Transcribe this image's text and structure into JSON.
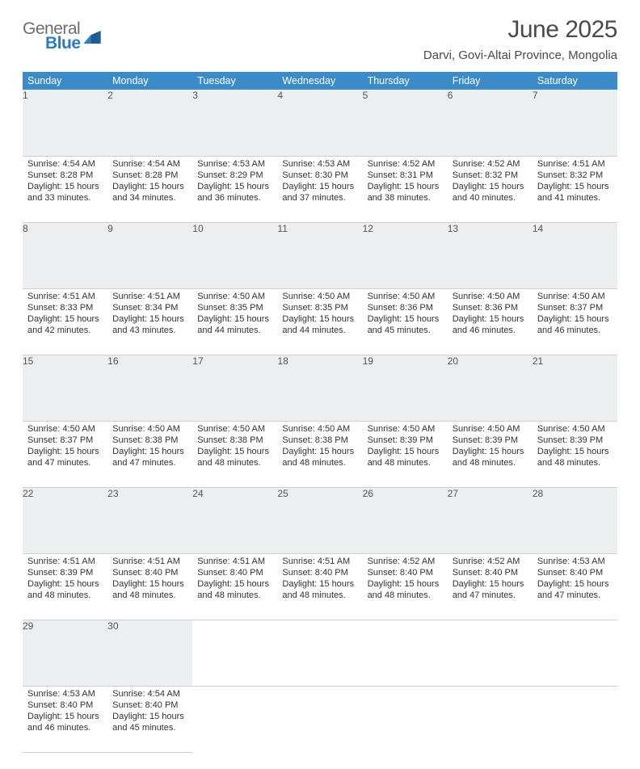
{
  "branding": {
    "word1": "General",
    "word2": "Blue",
    "word1_color": "#6e6e6e",
    "word2_color": "#2f7bbf"
  },
  "title": "June 2025",
  "location": "Darvi, Govi-Altai Province, Mongolia",
  "colors": {
    "header_bg": "#3b8bc9",
    "header_text": "#ffffff",
    "daynum_bg": "#eceeef",
    "week_sep": "#3b6fa0",
    "cell_border": "#d0d0d0",
    "body_text": "#333333"
  },
  "weekdays": [
    "Sunday",
    "Monday",
    "Tuesday",
    "Wednesday",
    "Thursday",
    "Friday",
    "Saturday"
  ],
  "weeks": [
    [
      {
        "n": "1",
        "sr": "4:54 AM",
        "ss": "8:28 PM",
        "dl": "15 hours and 33 minutes."
      },
      {
        "n": "2",
        "sr": "4:54 AM",
        "ss": "8:28 PM",
        "dl": "15 hours and 34 minutes."
      },
      {
        "n": "3",
        "sr": "4:53 AM",
        "ss": "8:29 PM",
        "dl": "15 hours and 36 minutes."
      },
      {
        "n": "4",
        "sr": "4:53 AM",
        "ss": "8:30 PM",
        "dl": "15 hours and 37 minutes."
      },
      {
        "n": "5",
        "sr": "4:52 AM",
        "ss": "8:31 PM",
        "dl": "15 hours and 38 minutes."
      },
      {
        "n": "6",
        "sr": "4:52 AM",
        "ss": "8:32 PM",
        "dl": "15 hours and 40 minutes."
      },
      {
        "n": "7",
        "sr": "4:51 AM",
        "ss": "8:32 PM",
        "dl": "15 hours and 41 minutes."
      }
    ],
    [
      {
        "n": "8",
        "sr": "4:51 AM",
        "ss": "8:33 PM",
        "dl": "15 hours and 42 minutes."
      },
      {
        "n": "9",
        "sr": "4:51 AM",
        "ss": "8:34 PM",
        "dl": "15 hours and 43 minutes."
      },
      {
        "n": "10",
        "sr": "4:50 AM",
        "ss": "8:35 PM",
        "dl": "15 hours and 44 minutes."
      },
      {
        "n": "11",
        "sr": "4:50 AM",
        "ss": "8:35 PM",
        "dl": "15 hours and 44 minutes."
      },
      {
        "n": "12",
        "sr": "4:50 AM",
        "ss": "8:36 PM",
        "dl": "15 hours and 45 minutes."
      },
      {
        "n": "13",
        "sr": "4:50 AM",
        "ss": "8:36 PM",
        "dl": "15 hours and 46 minutes."
      },
      {
        "n": "14",
        "sr": "4:50 AM",
        "ss": "8:37 PM",
        "dl": "15 hours and 46 minutes."
      }
    ],
    [
      {
        "n": "15",
        "sr": "4:50 AM",
        "ss": "8:37 PM",
        "dl": "15 hours and 47 minutes."
      },
      {
        "n": "16",
        "sr": "4:50 AM",
        "ss": "8:38 PM",
        "dl": "15 hours and 47 minutes."
      },
      {
        "n": "17",
        "sr": "4:50 AM",
        "ss": "8:38 PM",
        "dl": "15 hours and 48 minutes."
      },
      {
        "n": "18",
        "sr": "4:50 AM",
        "ss": "8:38 PM",
        "dl": "15 hours and 48 minutes."
      },
      {
        "n": "19",
        "sr": "4:50 AM",
        "ss": "8:39 PM",
        "dl": "15 hours and 48 minutes."
      },
      {
        "n": "20",
        "sr": "4:50 AM",
        "ss": "8:39 PM",
        "dl": "15 hours and 48 minutes."
      },
      {
        "n": "21",
        "sr": "4:50 AM",
        "ss": "8:39 PM",
        "dl": "15 hours and 48 minutes."
      }
    ],
    [
      {
        "n": "22",
        "sr": "4:51 AM",
        "ss": "8:39 PM",
        "dl": "15 hours and 48 minutes."
      },
      {
        "n": "23",
        "sr": "4:51 AM",
        "ss": "8:40 PM",
        "dl": "15 hours and 48 minutes."
      },
      {
        "n": "24",
        "sr": "4:51 AM",
        "ss": "8:40 PM",
        "dl": "15 hours and 48 minutes."
      },
      {
        "n": "25",
        "sr": "4:51 AM",
        "ss": "8:40 PM",
        "dl": "15 hours and 48 minutes."
      },
      {
        "n": "26",
        "sr": "4:52 AM",
        "ss": "8:40 PM",
        "dl": "15 hours and 48 minutes."
      },
      {
        "n": "27",
        "sr": "4:52 AM",
        "ss": "8:40 PM",
        "dl": "15 hours and 47 minutes."
      },
      {
        "n": "28",
        "sr": "4:53 AM",
        "ss": "8:40 PM",
        "dl": "15 hours and 47 minutes."
      }
    ],
    [
      {
        "n": "29",
        "sr": "4:53 AM",
        "ss": "8:40 PM",
        "dl": "15 hours and 46 minutes."
      },
      {
        "n": "30",
        "sr": "4:54 AM",
        "ss": "8:40 PM",
        "dl": "15 hours and 45 minutes."
      },
      null,
      null,
      null,
      null,
      null
    ]
  ],
  "labels": {
    "sunrise": "Sunrise:",
    "sunset": "Sunset:",
    "daylight": "Daylight:"
  }
}
